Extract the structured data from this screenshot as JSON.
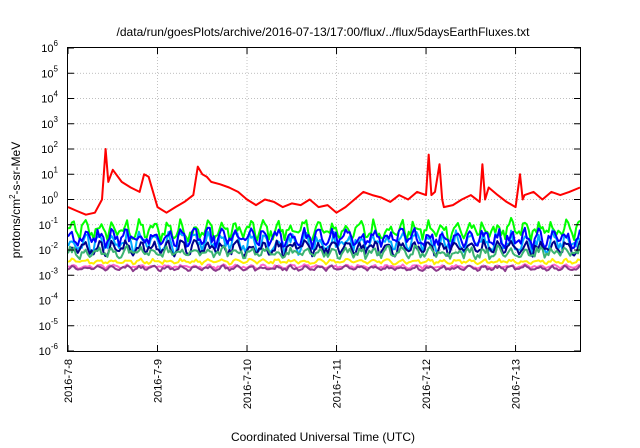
{
  "chart_data": {
    "type": "line",
    "title": "/data/run/goesPlots/archive/2016-07-13/17:00/flux/../flux/5daysEarthFluxes.txt",
    "xlabel": "Coordinated Universal Time (UTC)",
    "ylabel_base": "protons/cm",
    "ylabel_sup": "2",
    "ylabel_tail": "-s-sr-MeV",
    "yscale": "log",
    "ylim_exp": [
      -6,
      6
    ],
    "ytick_exponents": [
      -6,
      -5,
      -4,
      -3,
      -2,
      -1,
      0,
      1,
      2,
      3,
      4,
      5,
      6
    ],
    "ytick_base": "10",
    "xlim_days": [
      0,
      5.72
    ],
    "xticks": [
      {
        "label": "2016-7-8",
        "day": 0
      },
      {
        "label": "2016-7-9",
        "day": 1
      },
      {
        "label": "2016-7-10",
        "day": 2
      },
      {
        "label": "2016-7-11",
        "day": 3
      },
      {
        "label": "2016-7-12",
        "day": 4
      },
      {
        "label": "2016-7-13",
        "day": 5
      }
    ],
    "grid": true,
    "series": [
      {
        "color": "#ff0000",
        "kind": "profile",
        "x": [
          0,
          0.1,
          0.2,
          0.3,
          0.38,
          0.42,
          0.45,
          0.5,
          0.6,
          0.7,
          0.8,
          0.85,
          0.9,
          1.0,
          1.1,
          1.2,
          1.3,
          1.4,
          1.45,
          1.5,
          1.55,
          1.6,
          1.7,
          1.8,
          1.9,
          2.0,
          2.1,
          2.2,
          2.3,
          2.4,
          2.5,
          2.6,
          2.7,
          2.8,
          2.9,
          3.0,
          3.1,
          3.2,
          3.3,
          3.4,
          3.5,
          3.6,
          3.7,
          3.8,
          3.9,
          4.0,
          4.03,
          4.06,
          4.1,
          4.15,
          4.18,
          4.2,
          4.3,
          4.4,
          4.5,
          4.6,
          4.63,
          4.66,
          4.7,
          4.8,
          4.9,
          5.0,
          5.05,
          5.08,
          5.1,
          5.2,
          5.3,
          5.4,
          5.5,
          5.6,
          5.72
        ],
        "y": [
          0.5,
          0.35,
          0.25,
          0.3,
          1.0,
          100,
          5,
          15,
          5,
          3,
          2,
          10,
          8,
          0.5,
          0.3,
          0.5,
          0.8,
          1.5,
          20,
          10,
          8,
          5,
          4,
          3,
          2,
          1,
          0.6,
          1,
          0.8,
          0.5,
          0.7,
          0.6,
          1.0,
          0.5,
          0.6,
          0.3,
          0.5,
          1.0,
          2,
          1.5,
          1.2,
          0.8,
          1.5,
          1,
          2,
          1.5,
          60,
          1.5,
          2,
          25,
          1,
          0.5,
          0.6,
          1,
          1.5,
          0.8,
          25,
          1,
          3,
          1.5,
          0.8,
          0.5,
          10,
          1,
          1.5,
          2,
          1,
          2,
          1.5,
          2,
          3
        ]
      },
      {
        "color": "#00ff00",
        "kind": "noise",
        "base": 0.06,
        "amp": 0.5
      },
      {
        "color": "#00aaff",
        "kind": "noise",
        "base": 0.02,
        "amp": 0.5
      },
      {
        "color": "#0000ff",
        "kind": "noise",
        "base": 0.03,
        "amp": 0.45
      },
      {
        "color": "#00008b",
        "kind": "noise",
        "base": 0.012,
        "amp": 0.35
      },
      {
        "color": "#3cb371",
        "kind": "noise",
        "base": 0.008,
        "amp": 0.3
      },
      {
        "color": "#ffee00",
        "kind": "noise",
        "base": 0.0035,
        "amp": 0.12
      },
      {
        "color": "#ff66cc",
        "kind": "noise",
        "base": 0.0022,
        "amp": 0.1
      },
      {
        "color": "#8b3a8b",
        "kind": "noise",
        "base": 0.0019,
        "amp": 0.12
      }
    ]
  }
}
